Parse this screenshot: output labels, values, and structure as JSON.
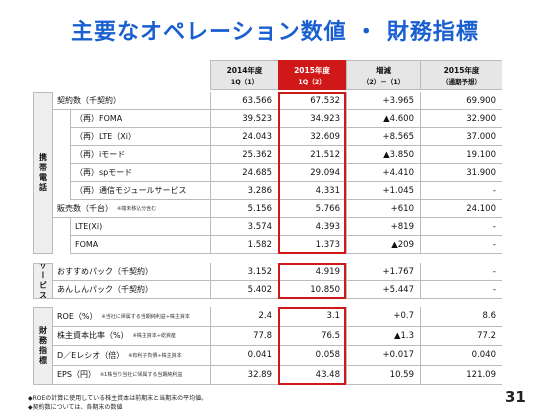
{
  "header": {
    "title": "主要なオペレーション数値 ・ 財務指標"
  },
  "table": {
    "headers": [
      [
        "2014年度",
        "1Q（1）"
      ],
      [
        "2015年度",
        "1Q（2）"
      ],
      [
        "増減",
        "（2）－（1）"
      ],
      [
        "2015年度",
        "（通期予想）"
      ]
    ],
    "sections": [
      {
        "label": "携帯電話",
        "rows": [
          {
            "label": "契約数（千契約）",
            "values": [
              "63.566",
              "67.532",
              "+3.965",
              "69.900"
            ],
            "children": [
              {
                "label": "（再）FOMA",
                "values": [
                  "39.523",
                  "34.923",
                  "▲4.600",
                  "32.900"
                ]
              },
              {
                "label": "（再）LTE（Xi）",
                "values": [
                  "24.043",
                  "32.609",
                  "+8.565",
                  "37.000"
                ]
              },
              {
                "label": "（再）iモード",
                "values": [
                  "25.362",
                  "21.512",
                  "▲3.850",
                  "19.100"
                ]
              },
              {
                "label": "（再）spモード",
                "values": [
                  "24.685",
                  "29.094",
                  "+4.410",
                  "31.900"
                ]
              },
              {
                "label": "（再）通信モジュールサービス",
                "values": [
                  "3.286",
                  "4.331",
                  "+1.045",
                  "-"
                ]
              }
            ]
          },
          {
            "label": "販売数（千台）",
            "note": "※端末移込分含む",
            "values": [
              "5.156",
              "5.766",
              "+610",
              "24.100"
            ],
            "children": [
              {
                "label": "LTE(Xi)",
                "values": [
                  "3.574",
                  "4.393",
                  "+819",
                  "-"
                ]
              },
              {
                "label": "FOMA",
                "values": [
                  "1.582",
                  "1.373",
                  "▲209",
                  "-"
                ]
              }
            ]
          }
        ]
      },
      {
        "label": "サービス",
        "rows": [
          {
            "label": "おすすめパック（千契約）",
            "values": [
              "3.152",
              "4.919",
              "+1.767",
              "-"
            ]
          },
          {
            "label": "あんしんパック（千契約）",
            "values": [
              "5.402",
              "10.850",
              "+5.447",
              "-"
            ]
          }
        ]
      },
      {
        "label": "財務指標",
        "rows": [
          {
            "label": "ROE（%）",
            "note": "※当社に帰属する当期純利益÷株主資本",
            "values": [
              "2.4",
              "3.1",
              "+0.7",
              "8.6"
            ]
          },
          {
            "label": "株主資本比率（%）",
            "note": "※株主資本÷総資産",
            "values": [
              "77.8",
              "76.5",
              "▲1.3",
              "77.2"
            ]
          },
          {
            "label": "D／Eレシオ（倍）",
            "note": "※有利子負債÷株主資本",
            "values": [
              "0.041",
              "0.058",
              "+0.017",
              "0.040"
            ]
          },
          {
            "label": "EPS（円）",
            "note": "※1株当り当社に帰属する当期純利益",
            "values": [
              "32.89",
              "43.48",
              "10.59",
              "121.09"
            ]
          }
        ]
      }
    ]
  },
  "footnotes": [
    "◆ROEの計算に使用している株主資本は前期末と当期末の平均値。",
    "◆契約数については、各期末の数値"
  ],
  "page_number": "31"
}
